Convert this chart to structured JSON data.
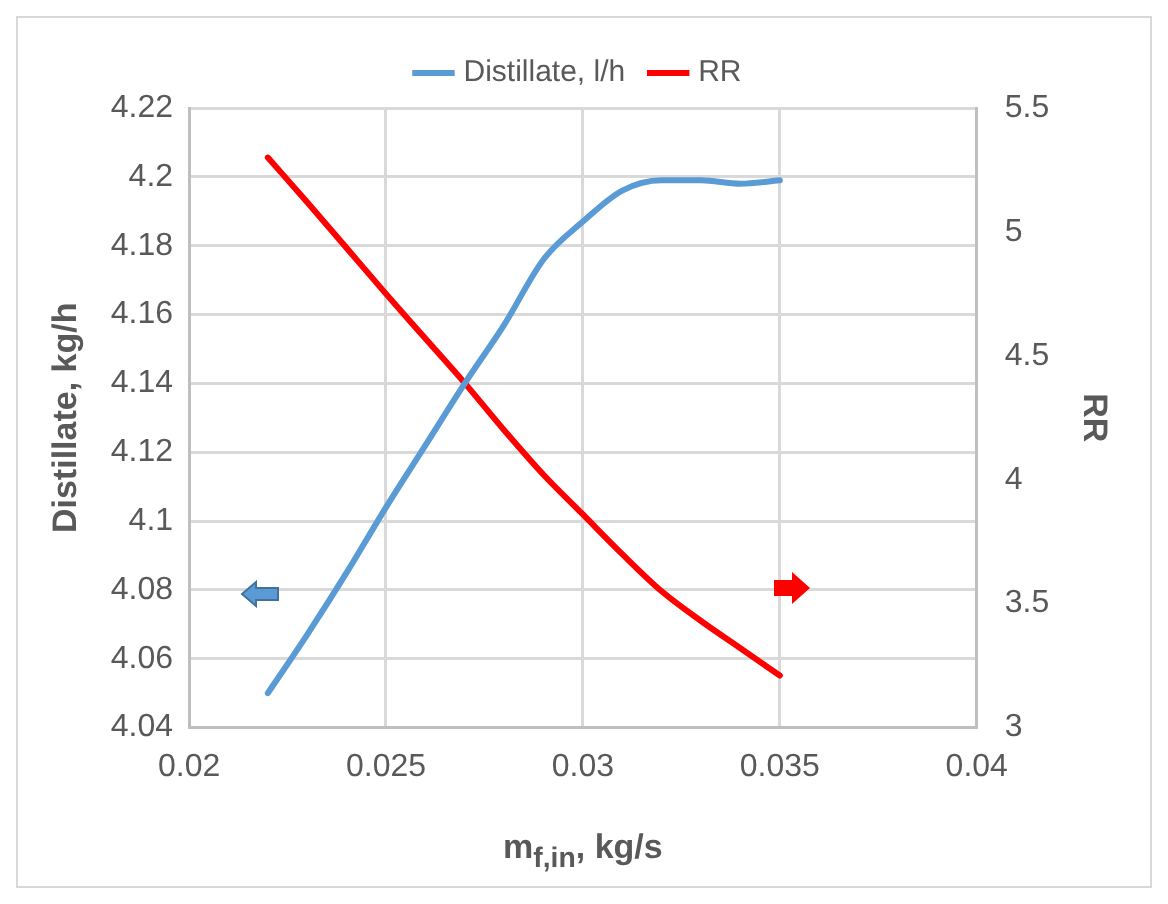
{
  "chart_data": {
    "type": "line",
    "xlabel": "m$_{f,in}$, kg/s",
    "ylabel": "Distillate, kg/h",
    "y2label": "RR",
    "legend": "top",
    "grid": true,
    "marker": "none",
    "line_style": "solid",
    "xlim": [
      0.02,
      0.04
    ],
    "xticks": [
      0.02,
      0.025,
      0.03,
      0.035,
      0.04
    ],
    "ylim": [
      4.04,
      4.22
    ],
    "yticks": [
      4.04,
      4.06,
      4.08,
      4.1,
      4.12,
      4.14,
      4.16,
      4.18,
      4.2,
      4.22
    ],
    "y2lim": [
      3,
      5.5
    ],
    "y2ticks": [
      3,
      3.5,
      4,
      4.5,
      5,
      5.5
    ],
    "series": [
      {
        "name": "Distillate, l/h",
        "color": "#5b9bd5",
        "x": [
          0.022,
          0.023,
          0.024,
          0.025,
          0.026,
          0.027,
          0.028,
          0.029,
          0.03,
          0.031,
          0.032,
          0.033,
          0.034,
          0.035
        ],
        "values": [
          4.05,
          4.067,
          4.085,
          4.104,
          4.122,
          4.14,
          4.157,
          4.176,
          4.187,
          4.196,
          4.199,
          4.199,
          4.198,
          4.199
        ]
      },
      {
        "name": "RR",
        "color": "#ff0000",
        "axis": "y2",
        "x": [
          0.022,
          0.023,
          0.024,
          0.025,
          0.026,
          0.027,
          0.028,
          0.029,
          0.03,
          0.031,
          0.032,
          0.033,
          0.034,
          0.035
        ],
        "values": [
          5.3,
          5.12,
          4.935,
          4.75,
          4.57,
          4.39,
          4.2,
          4.02,
          3.86,
          3.7,
          3.55,
          3.43,
          3.32,
          3.21
        ]
      }
    ]
  }
}
